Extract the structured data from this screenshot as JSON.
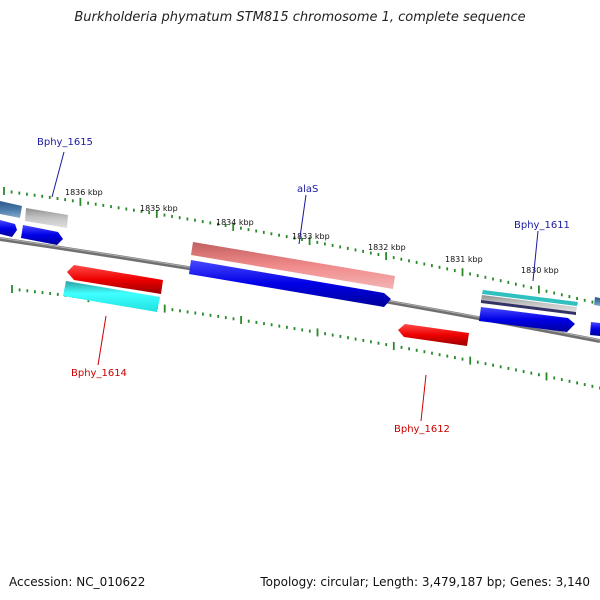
{
  "title": "Burkholderia phymatum STM815 chromosome 1, complete sequence",
  "footer": {
    "accession": "Accession: NC_010622",
    "summary": "Topology: circular; Length: 3,479,187 bp; Genes: 3,140"
  },
  "colors": {
    "backbone": "#888888",
    "tick": "#2a8a2a",
    "forward_label": "#1a1aa0",
    "reverse_label": "#cc0000"
  },
  "scale_labels": [
    "1836 kbp",
    "1835 kbp",
    "1834 kbp",
    "1833 kbp",
    "1832 kbp",
    "1831 kbp",
    "1830 kbp"
  ],
  "gene_labels": {
    "bphy_1615": "Bphy_1615",
    "alas": "alaS",
    "bphy_1611": "Bphy_1611",
    "bphy_1614": "Bphy_1614",
    "bphy_1612": "Bphy_1612"
  }
}
